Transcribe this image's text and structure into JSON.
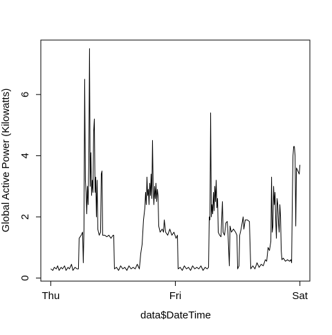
{
  "chart_data": {
    "type": "line",
    "xlabel": "data$DateTime",
    "ylabel": "Global Active Power (Kilowatts)",
    "color": "#000000",
    "grid": false,
    "xlim": [
      -115,
      2995
    ],
    "xticks": [
      {
        "value": 0,
        "label": "Thu"
      },
      {
        "value": 1440,
        "label": "Fri"
      },
      {
        "value": 2880,
        "label": "Sat"
      }
    ],
    "ylim": [
      -0.1,
      7.78
    ],
    "yticks": [
      0,
      2,
      4,
      6
    ],
    "x": [
      0,
      24,
      40,
      64,
      80,
      96,
      120,
      136,
      160,
      176,
      200,
      216,
      240,
      256,
      280,
      304,
      320,
      328,
      352,
      368,
      376,
      384,
      392,
      400,
      408,
      416,
      424,
      432,
      440,
      448,
      456,
      464,
      472,
      480,
      488,
      496,
      504,
      512,
      520,
      528,
      536,
      544,
      560,
      576,
      584,
      592,
      600,
      624,
      648,
      672,
      696,
      720,
      728,
      736,
      760,
      784,
      808,
      832,
      856,
      880,
      904,
      928,
      952,
      976,
      1000,
      1024,
      1040,
      1056,
      1072,
      1088,
      1096,
      1104,
      1112,
      1120,
      1128,
      1136,
      1144,
      1152,
      1160,
      1168,
      1176,
      1184,
      1192,
      1200,
      1208,
      1216,
      1224,
      1232,
      1240,
      1248,
      1264,
      1288,
      1304,
      1312,
      1328,
      1352,
      1376,
      1400,
      1424,
      1448,
      1464,
      1472,
      1496,
      1520,
      1544,
      1568,
      1592,
      1616,
      1640,
      1664,
      1688,
      1712,
      1736,
      1760,
      1784,
      1808,
      1824,
      1832,
      1840,
      1848,
      1856,
      1864,
      1872,
      1880,
      1888,
      1896,
      1904,
      1912,
      1920,
      1928,
      1936,
      1952,
      1968,
      1984,
      1992,
      2008,
      2024,
      2040,
      2048,
      2064,
      2072,
      2088,
      2112,
      2136,
      2152,
      2160,
      2176,
      2184,
      2200,
      2224,
      2232,
      2248,
      2272,
      2296,
      2312,
      2336,
      2360,
      2384,
      2408,
      2432,
      2456,
      2480,
      2496,
      2512,
      2528,
      2544,
      2552,
      2560,
      2568,
      2576,
      2584,
      2592,
      2600,
      2608,
      2616,
      2624,
      2632,
      2640,
      2648,
      2656,
      2664,
      2672,
      2688,
      2712,
      2736,
      2760,
      2776,
      2784,
      2792,
      2800,
      2808,
      2816,
      2824,
      2832,
      2840,
      2856,
      2872,
      2880
    ],
    "values": [
      0.3,
      0.25,
      0.35,
      0.3,
      0.4,
      0.25,
      0.35,
      0.3,
      0.4,
      0.25,
      0.35,
      0.3,
      0.45,
      0.25,
      0.35,
      0.3,
      0.3,
      1.3,
      1.4,
      1.5,
      0.5,
      1.6,
      6.5,
      3.2,
      2.8,
      2.1,
      3.0,
      2.4,
      3.8,
      7.5,
      3.0,
      4.1,
      2.7,
      3.2,
      2.8,
      4.8,
      5.2,
      2.8,
      3.3,
      2.0,
      3.2,
      1.6,
      1.4,
      1.5,
      3.4,
      3.5,
      1.4,
      1.4,
      1.35,
      1.4,
      1.3,
      1.4,
      1.4,
      0.3,
      0.35,
      0.25,
      0.4,
      0.3,
      0.35,
      0.25,
      0.4,
      0.3,
      0.35,
      0.3,
      0.45,
      0.3,
      0.8,
      1.1,
      1.9,
      2.3,
      2.8,
      2.4,
      3.3,
      2.7,
      2.9,
      2.4,
      3.1,
      2.7,
      3.4,
      2.6,
      4.5,
      2.9,
      2.4,
      3.0,
      2.6,
      3.1,
      2.5,
      2.9,
      2.7,
      1.7,
      1.5,
      1.6,
      1.5,
      1.9,
      1.5,
      1.4,
      1.6,
      1.4,
      1.5,
      1.3,
      1.4,
      0.3,
      0.35,
      0.25,
      0.4,
      0.3,
      0.35,
      0.25,
      0.4,
      0.3,
      0.35,
      0.3,
      0.4,
      0.25,
      0.35,
      0.3,
      0.35,
      2.0,
      1.9,
      5.4,
      2.0,
      2.4,
      2.1,
      2.8,
      2.2,
      3.0,
      2.5,
      3.2,
      2.3,
      2.6,
      1.5,
      1.4,
      1.35,
      2.5,
      1.5,
      1.4,
      1.8,
      1.85,
      1.5,
      0.4,
      1.7,
      1.5,
      1.6,
      1.5,
      1.4,
      0.3,
      0.4,
      1.4,
      1.6,
      2.0,
      1.6,
      1.9,
      1.9,
      1.85,
      0.3,
      0.4,
      0.3,
      0.5,
      0.35,
      0.45,
      0.4,
      0.6,
      0.55,
      1.0,
      0.9,
      1.2,
      3.3,
      1.5,
      1.7,
      3.0,
      2.4,
      2.8,
      1.9,
      1.3,
      2.6,
      2.4,
      1.8,
      1.5,
      2.4,
      2.0,
      0.9,
      0.6,
      0.65,
      0.55,
      0.6,
      0.55,
      0.6,
      0.5,
      2.5,
      4.0,
      4.3,
      4.3,
      4.0,
      1.7,
      3.6,
      3.5,
      3.4,
      3.7
    ]
  }
}
